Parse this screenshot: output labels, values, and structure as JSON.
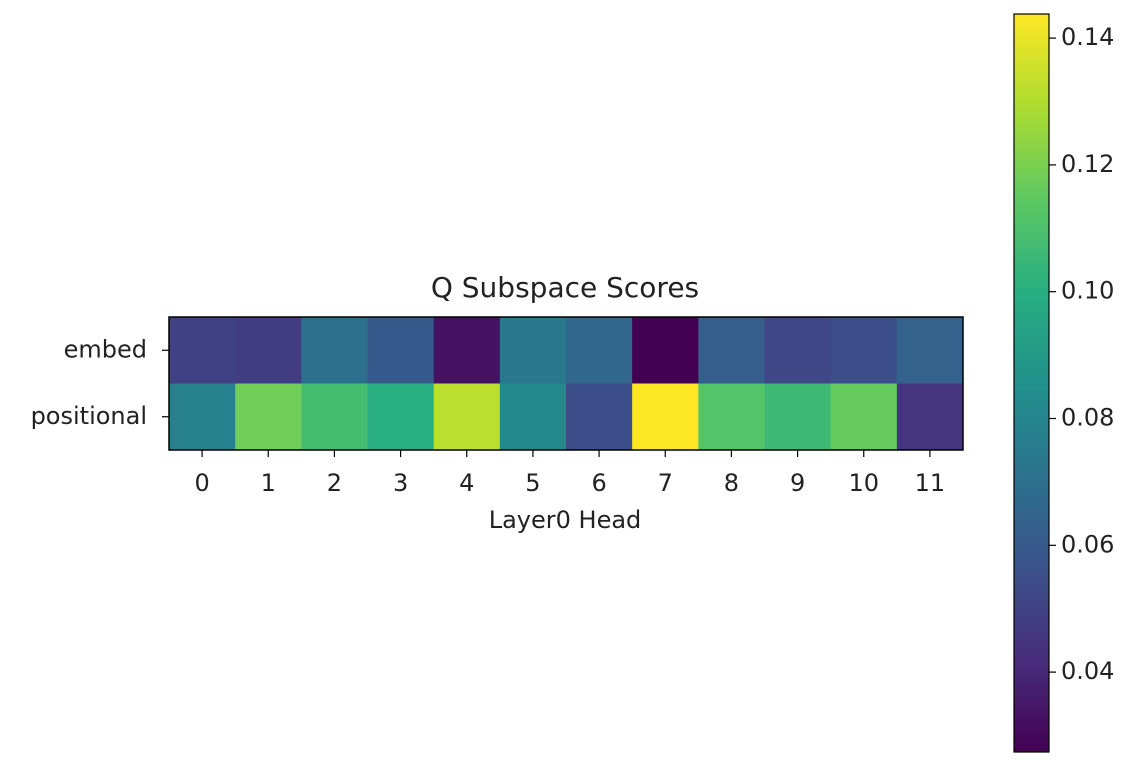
{
  "chart_data": {
    "type": "heatmap",
    "title": "Q Subspace Scores",
    "x_label": "Layer0 Head",
    "categories": [
      "0",
      "1",
      "2",
      "3",
      "4",
      "5",
      "6",
      "7",
      "8",
      "9",
      "10",
      "11"
    ],
    "rows": [
      "embed",
      "positional"
    ],
    "values": [
      [
        0.05,
        0.048,
        0.07,
        0.06,
        0.033,
        0.074,
        0.066,
        0.0274,
        0.062,
        0.052,
        0.055,
        0.064
      ],
      [
        0.078,
        0.118,
        0.108,
        0.1,
        0.132,
        0.082,
        0.055,
        0.1438,
        0.112,
        0.106,
        0.116,
        0.045
      ]
    ],
    "colormap": "viridis",
    "clim": [
      0.0274,
      0.1438
    ],
    "cticks": [
      0.04,
      0.06,
      0.08,
      {
        "value": 0.1,
        "label": "0.10"
      },
      0.12,
      0.14
    ]
  }
}
